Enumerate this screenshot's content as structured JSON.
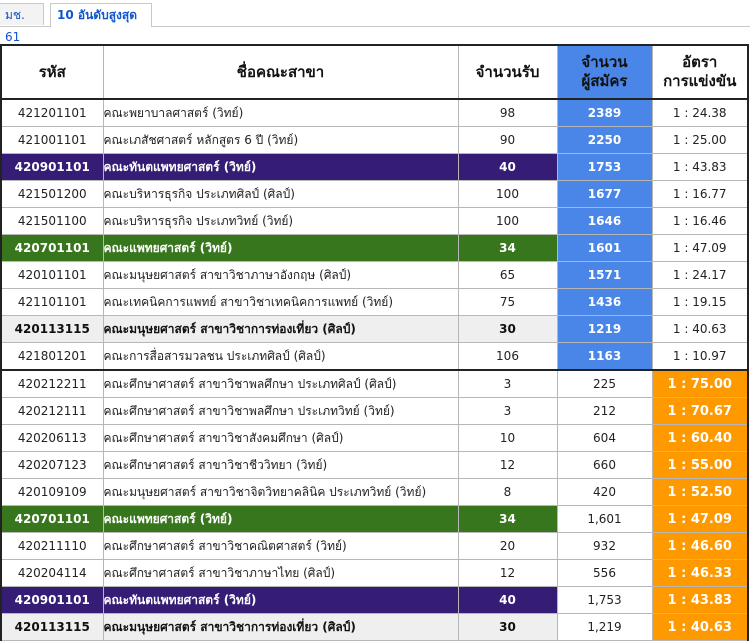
{
  "tabs": [
    {
      "label": "มช. 61",
      "active": false
    },
    {
      "label": "10 อันดับสูงสุด",
      "active": true
    }
  ],
  "headers": {
    "code": "รหัส",
    "faculty": "ชื่อคณะสาขา",
    "seats": "จำนวนรับ",
    "applicants_line1": "จำนวน",
    "applicants_line2": "ผู้สมัคร",
    "ratio_line1": "อัตรา",
    "ratio_line2": "การแข่งขัน"
  },
  "colors": {
    "applicants_highlight": "#4a86e8",
    "ratio_highlight": "#ff9900",
    "dentistry_row": "#351c75",
    "medicine_row": "#38761d",
    "tourism_row": "#efefef"
  },
  "rows": [
    {
      "code": "421201101",
      "name": "คณะพยาบาลศาสตร์ (วิทย์)",
      "seats": "98",
      "applicants": "2389",
      "ratio": "1 : 24.38"
    },
    {
      "code": "421001101",
      "name": "คณะเภสัชศาสตร์ หลักสูตร 6 ปี (วิทย์)",
      "seats": "90",
      "applicants": "2250",
      "ratio": "1 : 25.00"
    },
    {
      "code": "420901101",
      "name": "คณะทันตแพทยศาสตร์ (วิทย์)",
      "seats": "40",
      "applicants": "1753",
      "ratio": "1 : 43.83"
    },
    {
      "code": "421501200",
      "name": "คณะบริหารธุรกิจ ประเภทศิลป์ (ศิลป์)",
      "seats": "100",
      "applicants": "1677",
      "ratio": "1 : 16.77"
    },
    {
      "code": "421501100",
      "name": "คณะบริหารธุรกิจ ประเภทวิทย์ (วิทย์)",
      "seats": "100",
      "applicants": "1646",
      "ratio": "1 : 16.46"
    },
    {
      "code": "420701101",
      "name": "คณะแพทยศาสตร์ (วิทย์)",
      "seats": "34",
      "applicants": "1601",
      "ratio": "1 : 47.09"
    },
    {
      "code": "420101101",
      "name": "คณะมนุษยศาสตร์ สาขาวิชาภาษาอังกฤษ (ศิลป์)",
      "seats": "65",
      "applicants": "1571",
      "ratio": "1 : 24.17"
    },
    {
      "code": "421101101",
      "name": "คณะเทคนิคการแพทย์ สาขาวิชาเทคนิคการแพทย์ (วิทย์)",
      "seats": "75",
      "applicants": "1436",
      "ratio": "1 : 19.15"
    },
    {
      "code": "420113115",
      "name": "คณะมนุษยศาสตร์ สาขาวิชาการท่องเที่ยว (ศิลป์)",
      "seats": "30",
      "applicants": "1219",
      "ratio": "1 : 40.63"
    },
    {
      "code": "421801201",
      "name": "คณะการสื่อสารมวลชน ประเภทศิลป์ (ศิลป์)",
      "seats": "106",
      "applicants": "1163",
      "ratio": "1 : 10.97"
    },
    {
      "code": "420212211",
      "name": "คณะศึกษาศาสตร์ สาขาวิชาพลศึกษา ประเภทศิลป์ (ศิลป์)",
      "seats": "3",
      "applicants": "225",
      "ratio": "1 : 75.00"
    },
    {
      "code": "420212111",
      "name": "คณะศึกษาศาสตร์ สาขาวิชาพลศึกษา ประเภทวิทย์ (วิทย์)",
      "seats": "3",
      "applicants": "212",
      "ratio": "1 : 70.67"
    },
    {
      "code": "420206113",
      "name": "คณะศึกษาศาสตร์ สาขาวิชาสังคมศึกษา (ศิลป์)",
      "seats": "10",
      "applicants": "604",
      "ratio": "1 : 60.40"
    },
    {
      "code": "420207123",
      "name": "คณะศึกษาศาสตร์ สาขาวิชาชีววิทยา (วิทย์)",
      "seats": "12",
      "applicants": "660",
      "ratio": "1 : 55.00"
    },
    {
      "code": "420109109",
      "name": "คณะมนุษยศาสตร์ สาขาวิชาจิตวิทยาคลินิค ประเภทวิทย์ (วิทย์)",
      "seats": "8",
      "applicants": "420",
      "ratio": "1 : 52.50"
    },
    {
      "code": "420701101",
      "name": "คณะแพทยศาสตร์ (วิทย์)",
      "seats": "34",
      "applicants": "1,601",
      "ratio": "1 : 47.09"
    },
    {
      "code": "420211110",
      "name": "คณะศึกษาศาสตร์ สาขาวิชาคณิตศาสตร์ (วิทย์)",
      "seats": "20",
      "applicants": "932",
      "ratio": "1 : 46.60"
    },
    {
      "code": "420204114",
      "name": "คณะศึกษาศาสตร์ สาขาวิชาภาษาไทย (ศิลป์)",
      "seats": "12",
      "applicants": "556",
      "ratio": "1 : 46.33"
    },
    {
      "code": "420901101",
      "name": "คณะทันตแพทยศาสตร์ (วิทย์)",
      "seats": "40",
      "applicants": "1,753",
      "ratio": "1 : 43.83"
    },
    {
      "code": "420113115",
      "name": "คณะมนุษยศาสตร์ สาขาวิชาการท่องเที่ยว (ศิลป์)",
      "seats": "30",
      "applicants": "1,219",
      "ratio": "1 : 40.63"
    }
  ]
}
